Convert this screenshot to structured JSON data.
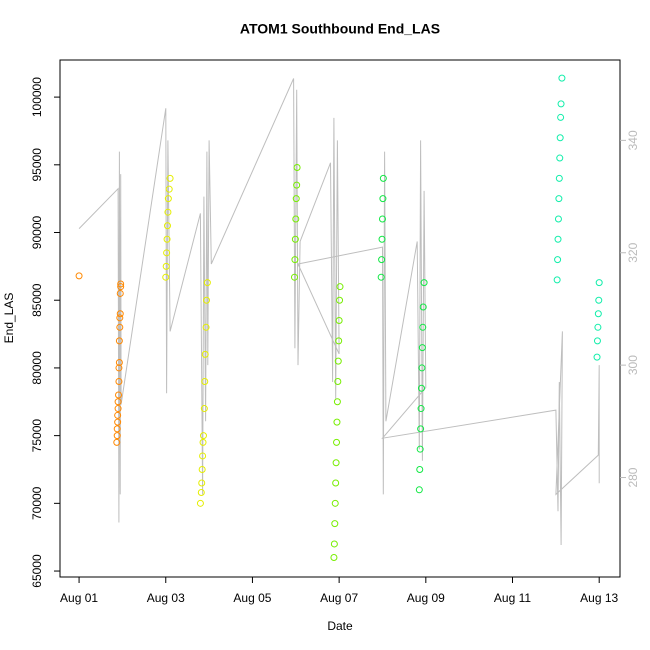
{
  "chart_data": {
    "type": "scatter",
    "title": "ATOM1 Southbound End_LAS",
    "xlabel": "Date",
    "ylabel": "End_LAS",
    "xlim": [
      0.56,
      13.48
    ],
    "ylim": [
      64560,
      102740
    ],
    "y2lim": [
      262.3,
      354.3
    ],
    "xticks": [
      {
        "value": 1,
        "label": "Aug 01"
      },
      {
        "value": 3,
        "label": "Aug 03"
      },
      {
        "value": 5,
        "label": "Aug 05"
      },
      {
        "value": 7,
        "label": "Aug 07"
      },
      {
        "value": 9,
        "label": "Aug 09"
      },
      {
        "value": 11,
        "label": "Aug 11"
      },
      {
        "value": 13,
        "label": "Aug 13"
      }
    ],
    "yticks": [
      65000,
      70000,
      75000,
      80000,
      85000,
      90000,
      95000,
      100000
    ],
    "y2ticks": [
      280,
      300,
      320,
      340
    ],
    "series": [
      {
        "color": "#ff8800",
        "x": [
          1.0,
          1.87,
          1.88,
          1.88,
          1.89,
          1.89,
          1.9,
          1.9,
          1.91,
          1.92,
          1.92,
          1.93,
          1.93,
          1.94,
          1.94,
          1.95,
          1.95,
          1.96,
          1.96
        ],
        "values": [
          86800,
          74500,
          75000,
          75500,
          76000,
          76500,
          77000,
          77500,
          78000,
          79000,
          80000,
          80400,
          82000,
          83000,
          83700,
          84000,
          85500,
          86000,
          86200
        ]
      },
      {
        "color": "#e5ee00",
        "x": [
          3.0,
          3.01,
          3.02,
          3.03,
          3.04,
          3.05,
          3.06,
          3.08,
          3.1,
          3.8,
          3.82,
          3.83,
          3.84,
          3.85,
          3.86,
          3.87,
          3.89,
          3.9,
          3.91,
          3.93,
          3.94,
          3.96
        ],
        "values": [
          86700,
          87500,
          88500,
          89500,
          90500,
          91500,
          92500,
          93200,
          94000,
          70000,
          70800,
          71500,
          72500,
          73500,
          74500,
          75000,
          77000,
          79000,
          81000,
          83000,
          85000,
          86300
        ]
      },
      {
        "color": "#77ee00",
        "x": [
          5.97,
          5.98,
          5.99,
          6.0,
          6.01,
          6.02,
          6.03,
          6.88,
          6.89,
          6.9,
          6.91,
          6.92,
          6.93,
          6.94,
          6.95,
          6.96,
          6.97,
          6.98,
          6.99,
          7.0,
          7.01,
          7.02
        ],
        "values": [
          86700,
          88000,
          89500,
          91000,
          92500,
          93500,
          94800,
          66000,
          67000,
          68500,
          70000,
          71500,
          73000,
          74500,
          76000,
          77500,
          79000,
          80500,
          82000,
          83500,
          85000,
          86000
        ]
      },
      {
        "color": "#11e844",
        "x": [
          7.97,
          7.98,
          7.99,
          8.0,
          8.01,
          8.02,
          8.85,
          8.86,
          8.87,
          8.88,
          8.89,
          8.9,
          8.91,
          8.92,
          8.93,
          8.94,
          8.96
        ],
        "values": [
          86700,
          88000,
          89500,
          91000,
          92500,
          94000,
          71000,
          72500,
          74000,
          75500,
          77000,
          78500,
          80000,
          81500,
          83000,
          84500,
          86300
        ]
      },
      {
        "color": "#11eeaa",
        "x": [
          12.03,
          12.04,
          12.05,
          12.06,
          12.07,
          12.08,
          12.09,
          12.1,
          12.11,
          12.12,
          12.14,
          12.95,
          12.96,
          12.97,
          12.98,
          12.99,
          13.0
        ],
        "values": [
          86500,
          88000,
          89500,
          91000,
          92500,
          94000,
          95500,
          97000,
          98500,
          99500,
          101400,
          80800,
          82000,
          83000,
          84000,
          85000,
          86300
        ]
      },
      {
        "type": "line",
        "axis": "y2",
        "color": "#bebebe",
        "x": [
          1.0,
          1.9,
          1.92,
          1.93,
          1.95,
          1.96,
          1.97,
          3.0,
          3.02,
          3.05,
          3.1,
          3.8,
          3.85,
          3.88,
          3.92,
          3.95,
          3.97,
          4.0,
          4.05,
          5.95,
          5.98,
          6.02,
          6.05,
          6.1,
          6.8,
          6.85,
          6.88,
          6.92,
          6.96,
          7.0,
          6.05,
          8.0,
          8.02,
          8.05,
          8.08,
          8.8,
          8.85,
          8.88,
          8.92,
          8.96,
          9.0,
          8.0,
          12.0,
          12.05,
          12.08,
          12.12,
          12.15,
          12.0,
          12.98,
          13.0,
          13.0
        ],
        "values": [
          324.3,
          331.4,
          272,
          338,
          277,
          334,
          293,
          345.7,
          295,
          340,
          306,
          327,
          277,
          330,
          290,
          338,
          300,
          340,
          318,
          351,
          303,
          349,
          300,
          322,
          336,
          297,
          344,
          294,
          340,
          302,
          318,
          321,
          277,
          338,
          290,
          322,
          285,
          340,
          283,
          331,
          296,
          287,
          292,
          274,
          297,
          268,
          306,
          277,
          284,
          300,
          279
        ]
      }
    ]
  }
}
